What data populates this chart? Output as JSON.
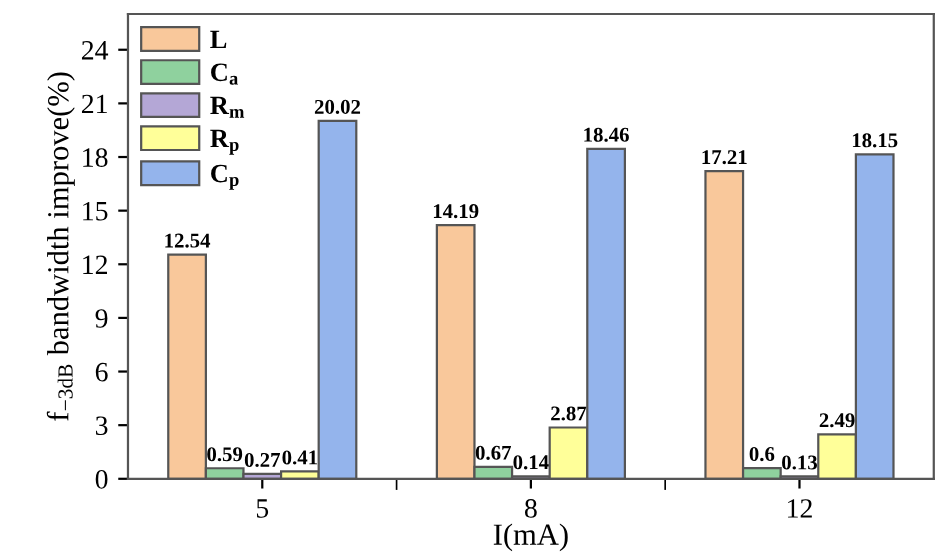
{
  "chart_data": {
    "type": "bar",
    "xlabel": "I(mA)",
    "ylabel": "f$_{−3dB}$ bandwidth improve(%)",
    "categories": [
      "5",
      "8",
      "12"
    ],
    "series": [
      {
        "name": "L",
        "color": "#f9c89b",
        "values": [
          12.54,
          14.19,
          17.21
        ]
      },
      {
        "name": "C$_{a}$",
        "color": "#8fd19e",
        "values": [
          0.59,
          0.67,
          0.6
        ]
      },
      {
        "name": "R$_{m}$",
        "color": "#b4a7d6",
        "values": [
          0.27,
          0.14,
          0.13
        ]
      },
      {
        "name": "R$_{p}$",
        "color": "#ffff99",
        "values": [
          0.41,
          2.87,
          2.49
        ]
      },
      {
        "name": "C$_{p}$",
        "color": "#94b4ec",
        "values": [
          20.02,
          18.46,
          18.15
        ]
      }
    ],
    "ylim": [
      0,
      26
    ],
    "yticks": [
      0,
      3,
      6,
      9,
      12,
      15,
      18,
      21,
      24
    ],
    "data_labels": true,
    "legend": "top left",
    "grid": false
  }
}
